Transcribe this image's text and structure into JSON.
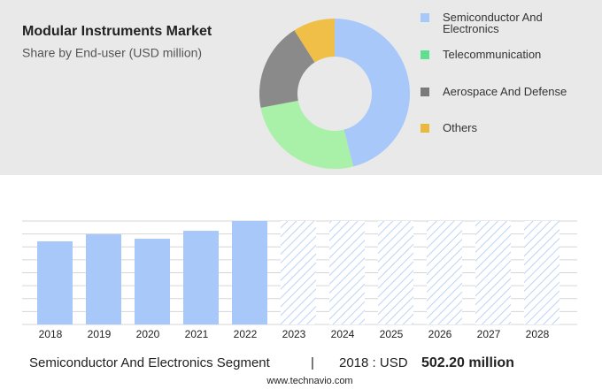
{
  "chart_data": [
    {
      "type": "pie",
      "title": "Modular Instruments Market",
      "subtitle": "Share by End-user (USD million)",
      "categories": [
        "Semiconductor And Electronics",
        "Telecommunication",
        "Aerospace And Defense",
        "Others"
      ],
      "values": [
        46,
        26,
        19,
        9
      ],
      "colors": [
        "#a9c8fa",
        "#a9f0a8",
        "#8a8a8a",
        "#f0bf48"
      ],
      "legend_colors": [
        "#a9c8fa",
        "#5fe08e",
        "#7a7a7a",
        "#e8b840"
      ]
    },
    {
      "type": "bar",
      "categories": [
        "2018",
        "2019",
        "2020",
        "2021",
        "2022",
        "2023",
        "2024",
        "2025",
        "2026",
        "2027",
        "2028"
      ],
      "values": [
        502.2,
        545,
        518,
        566,
        625,
        null,
        null,
        null,
        null,
        null,
        null
      ],
      "color": "#a9c8fa"
    }
  ],
  "footer": {
    "segment": "Semiconductor And Electronics Segment",
    "separator": "|",
    "year_label": "2018 : USD",
    "value_label": "502.20 million",
    "source": "www.technavio.com"
  }
}
